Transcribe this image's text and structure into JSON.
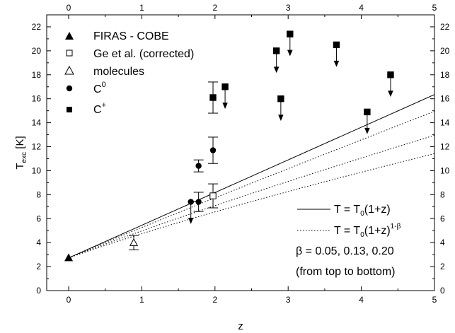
{
  "chart_data": {
    "type": "scatter",
    "title": "",
    "xlabel": "z",
    "ylabel_main": "T",
    "ylabel_sub": "exc",
    "ylabel_unit": " [K]",
    "xlim": [
      -0.3,
      5
    ],
    "ylim": [
      0,
      23
    ],
    "x_ticks": [
      0,
      1,
      2,
      3,
      4,
      5
    ],
    "y_ticks": [
      0,
      2,
      4,
      6,
      8,
      10,
      12,
      14,
      16,
      18,
      20,
      22
    ],
    "top_axis_ticks": [
      0,
      1,
      2,
      3,
      4,
      5
    ],
    "right_axis_ticks": [
      0,
      2,
      4,
      6,
      8,
      10,
      12,
      14,
      16,
      18,
      20,
      22
    ],
    "grid": false,
    "legend_position": "top-left",
    "T0": 2.725,
    "series": [
      {
        "name": "FIRAS - COBE",
        "marker": "filled-triangle",
        "points": [
          {
            "x": 0,
            "y": 2.73
          }
        ]
      },
      {
        "name": "Ge et al. (corrected)",
        "marker": "open-square",
        "points": [
          {
            "x": 1.973,
            "y": 7.9,
            "err": 1.0
          }
        ]
      },
      {
        "name": "molecules",
        "marker": "open-triangle",
        "points": [
          {
            "x": 0.89,
            "y": 4.0,
            "err": 0.6
          }
        ]
      },
      {
        "name": "C",
        "name_sup": "0",
        "marker": "filled-circle",
        "points": [
          {
            "x": 1.776,
            "y": 10.4,
            "err": 0.5
          },
          {
            "x": 1.973,
            "y": 11.7,
            "err": 1.1
          },
          {
            "x": 1.776,
            "y": 7.4,
            "err": 0.8
          },
          {
            "x": 1.67,
            "y": 7.4,
            "upper_limit": true
          }
        ]
      },
      {
        "name": "C",
        "name_sup": "+",
        "marker": "filled-square",
        "points": [
          {
            "x": 1.973,
            "y": 16.1,
            "err": 1.3
          },
          {
            "x": 2.138,
            "y": 17.0,
            "upper_limit": true
          },
          {
            "x": 2.84,
            "y": 20.0,
            "upper_limit": true
          },
          {
            "x": 2.9,
            "y": 16.0,
            "upper_limit": true
          },
          {
            "x": 3.025,
            "y": 21.4,
            "upper_limit": true
          },
          {
            "x": 3.66,
            "y": 20.5,
            "upper_limit": true
          },
          {
            "x": 4.08,
            "y": 14.9,
            "upper_limit": true
          },
          {
            "x": 4.4,
            "y": 18.0,
            "upper_limit": true
          }
        ]
      }
    ],
    "models": [
      {
        "label": "T = T0(1+z)",
        "style": "solid",
        "beta": 0
      },
      {
        "label": "T = T0(1+z)1-β",
        "style": "dotted",
        "betas": [
          0.05,
          0.13,
          0.2
        ]
      }
    ],
    "legend2": {
      "solid_text": "T = T",
      "solid_sub": "0",
      "solid_tail": "(1+z)",
      "dotted_text": "T = T",
      "dotted_sub": "0",
      "dotted_tail": "(1+z)",
      "dotted_sup": "1-β",
      "beta_line": "β = 0.05, 0.13, 0.20",
      "order_line": "(from top to bottom)"
    }
  }
}
